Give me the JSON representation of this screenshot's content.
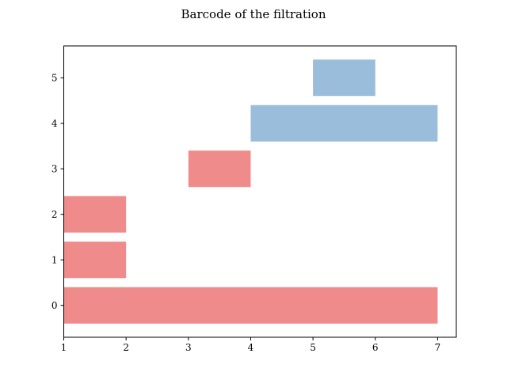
{
  "chart_data": {
    "type": "bar",
    "orientation": "horizontal",
    "title": "Barcode of the filtration",
    "xlabel": "",
    "ylabel": "",
    "xlim": [
      1,
      7.3
    ],
    "ylim": [
      -0.7,
      5.7
    ],
    "x_ticks": [
      1,
      2,
      3,
      4,
      5,
      6,
      7
    ],
    "y_ticks": [
      0,
      1,
      2,
      3,
      4,
      5
    ],
    "grid": false,
    "legend": "none",
    "colors": {
      "dimension_0": "#f08b8b",
      "dimension_1": "#9bbddc"
    },
    "bars": [
      {
        "index": 0,
        "birth": 1,
        "death": 7,
        "dimension": 0
      },
      {
        "index": 1,
        "birth": 1,
        "death": 2,
        "dimension": 0
      },
      {
        "index": 2,
        "birth": 1,
        "death": 2,
        "dimension": 0
      },
      {
        "index": 3,
        "birth": 3,
        "death": 4,
        "dimension": 0
      },
      {
        "index": 4,
        "birth": 4,
        "death": 7,
        "dimension": 1
      },
      {
        "index": 5,
        "birth": 5,
        "death": 6,
        "dimension": 1
      }
    ]
  }
}
